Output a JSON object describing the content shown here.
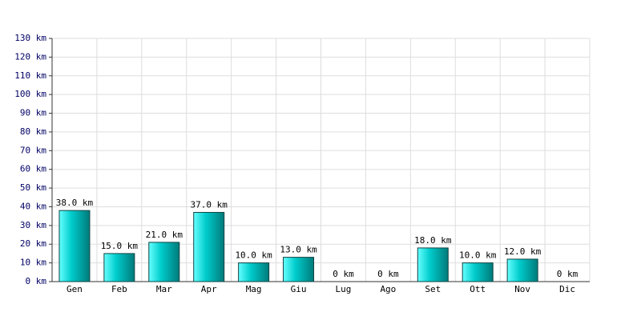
{
  "chart_data": {
    "type": "bar",
    "categories": [
      "Gen",
      "Feb",
      "Mar",
      "Apr",
      "Mag",
      "Giu",
      "Lug",
      "Ago",
      "Set",
      "Ott",
      "Nov",
      "Dic"
    ],
    "values": [
      38,
      15,
      21,
      37,
      10,
      13,
      0,
      0,
      18,
      10,
      12,
      0
    ],
    "value_labels": [
      "38.0 km",
      "15.0 km",
      "21.0 km",
      "37.0 km",
      "10.0 km",
      "13.0 km",
      "0 km",
      "0 km",
      "18.0 km",
      "10.0 km",
      "12.0 km",
      "0 km"
    ],
    "color": "#00cccc",
    "ylim": [
      0,
      130
    ],
    "yticks": [
      {
        "value": 0,
        "label": "0 km"
      },
      {
        "value": 10,
        "label": "10 km"
      },
      {
        "value": 20,
        "label": "20 km"
      },
      {
        "value": 30,
        "label": "30 km"
      },
      {
        "value": 40,
        "label": "40 km"
      },
      {
        "value": 50,
        "label": "50 km"
      },
      {
        "value": 60,
        "label": "60 km"
      },
      {
        "value": 70,
        "label": "70 km"
      },
      {
        "value": 80,
        "label": "80 km"
      },
      {
        "value": 90,
        "label": "90 km"
      },
      {
        "value": 100,
        "label": "100 km"
      },
      {
        "value": 110,
        "label": "110 km"
      },
      {
        "value": 120,
        "label": "120 km"
      },
      {
        "value": 130,
        "label": "130 km"
      }
    ],
    "grid": true
  }
}
